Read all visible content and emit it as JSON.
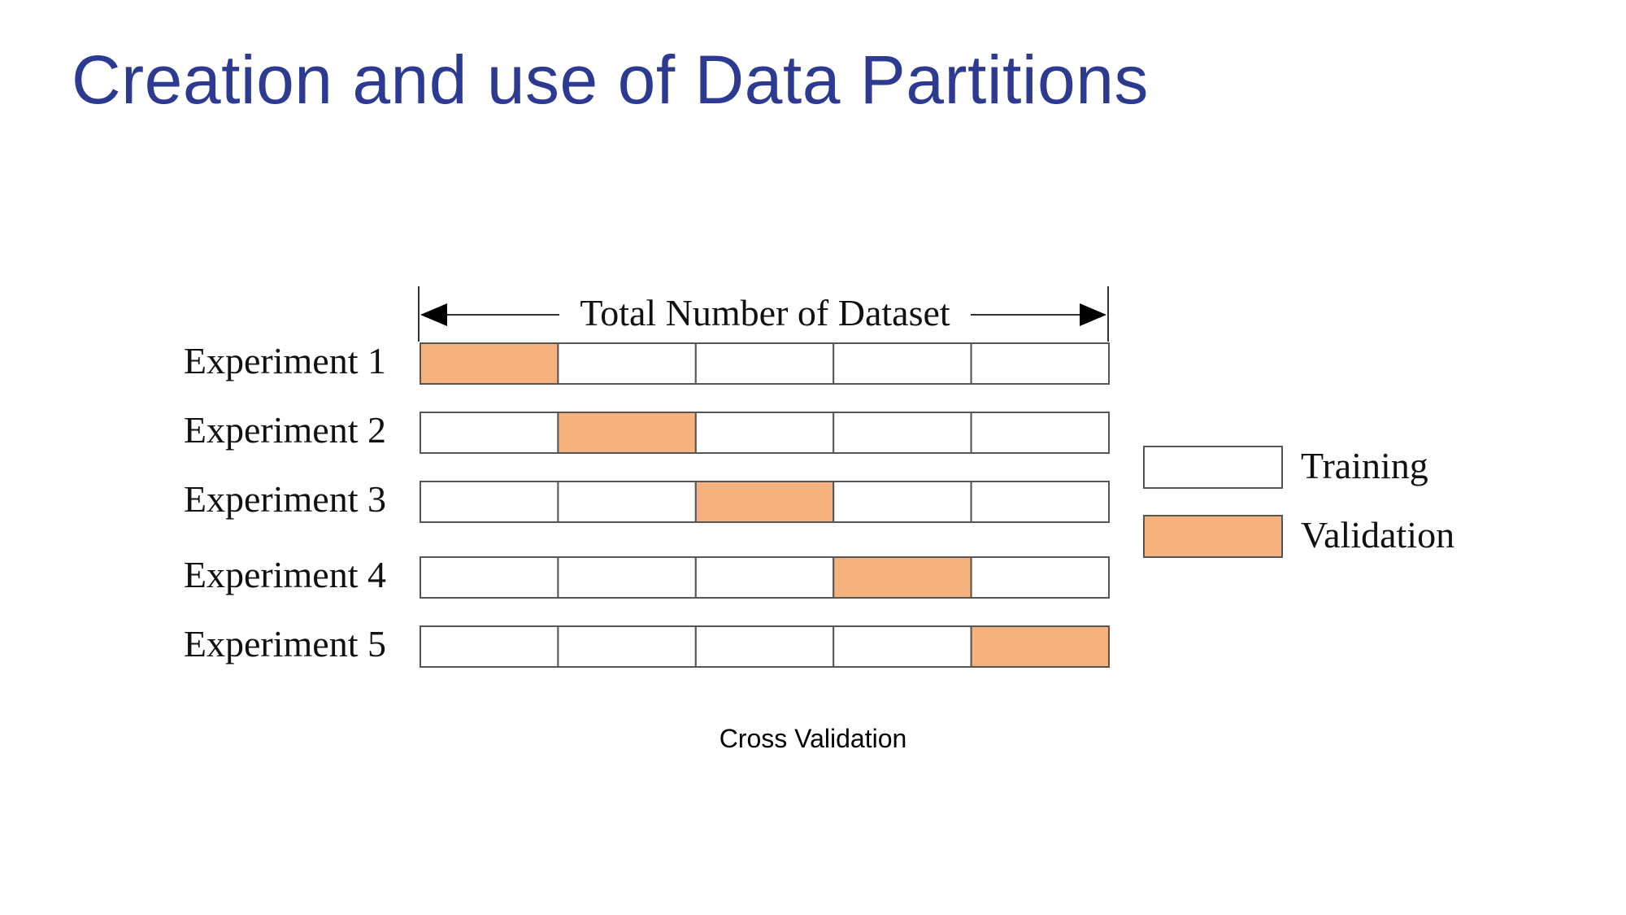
{
  "slide": {
    "title": "Creation and use of Data Partitions",
    "caption": "Cross Validation"
  },
  "diagram": {
    "total_label": "Total Number of Dataset",
    "folds": 5,
    "experiments": [
      {
        "label": "Experiment 1",
        "validation_fold": 1
      },
      {
        "label": "Experiment 2",
        "validation_fold": 2
      },
      {
        "label": "Experiment 3",
        "validation_fold": 3
      },
      {
        "label": "Experiment 4",
        "validation_fold": 4
      },
      {
        "label": "Experiment 5",
        "validation_fold": 5
      }
    ],
    "legend": [
      {
        "label": "Training",
        "color": "#ffffff"
      },
      {
        "label": "Validation",
        "color": "#f6b27e"
      }
    ],
    "colors": {
      "title": "#2c3a92",
      "validation": "#f6b27e",
      "training": "#ffffff",
      "stroke": "#555555"
    }
  }
}
